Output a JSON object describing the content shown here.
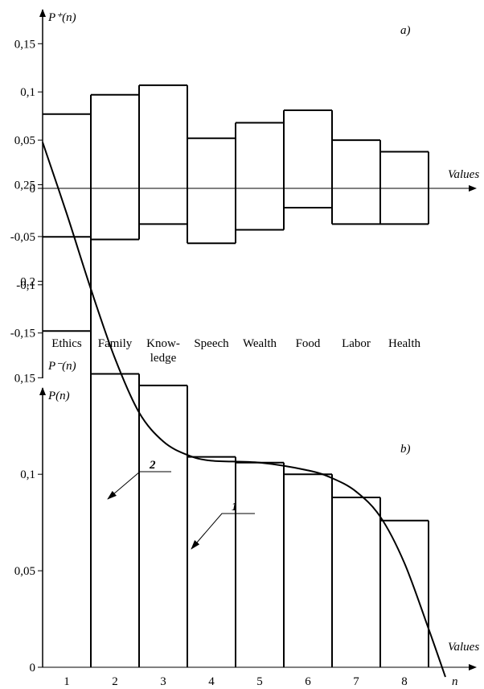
{
  "chart_data": [
    {
      "type": "bar",
      "panel_label": "a)",
      "ylabel_top": "P⁺(n)",
      "ylabel_bottom": "P⁻(n)",
      "xlabel": "Values",
      "categories": [
        "Ethics",
        "Family",
        "Know-|ledge",
        "Speech",
        "Wealth",
        "Food",
        "Labor",
        "Health"
      ],
      "series": [
        {
          "values": [
            0.077,
            0.097,
            0.107,
            0.052,
            0.068,
            0.081,
            0.05,
            0.038
          ]
        },
        {
          "values": [
            -0.148,
            -0.053,
            -0.037,
            -0.057,
            -0.043,
            -0.02,
            -0.037,
            -0.037
          ]
        }
      ],
      "yticks": [
        0.15,
        0.1,
        0.05,
        0,
        -0.05,
        -0.1,
        -0.15
      ],
      "ytick_labels": [
        "0,15",
        "0,1",
        "0,05",
        "0",
        "-0,05",
        "-0,1",
        "-0,15"
      ],
      "ylim": [
        -0.15,
        0.15
      ]
    },
    {
      "type": "bar",
      "panel_label": "b)",
      "ylabel": "P(n)",
      "xlabel_arrow": "Values",
      "xlabel": "n",
      "categories": [
        "1",
        "2",
        "3",
        "4",
        "5",
        "6",
        "7",
        "8"
      ],
      "values": [
        0.223,
        0.152,
        0.146,
        0.109,
        0.106,
        0.1,
        0.088,
        0.076
      ],
      "yticks": [
        0,
        0.05,
        0.1,
        0.15,
        0.2,
        0.25
      ],
      "ytick_labels": [
        "0",
        "0,05",
        "0,1",
        "0,15",
        "0,2",
        "0,25"
      ],
      "ylim": [
        0,
        0.27
      ],
      "curve": {
        "x": [
          0.5,
          1.0,
          1.5,
          2.0,
          2.5,
          3.0,
          3.5,
          4.0,
          5.0,
          6.0,
          6.5,
          7.0,
          7.5,
          8.0,
          8.5,
          8.85
        ],
        "y": [
          0.272,
          0.235,
          0.196,
          0.16,
          0.132,
          0.117,
          0.11,
          0.107,
          0.106,
          0.102,
          0.098,
          0.091,
          0.078,
          0.054,
          0.02,
          -0.005
        ]
      },
      "annotations": [
        {
          "text": "1",
          "target": "bars"
        },
        {
          "text": "2",
          "target": "curve"
        }
      ]
    }
  ]
}
